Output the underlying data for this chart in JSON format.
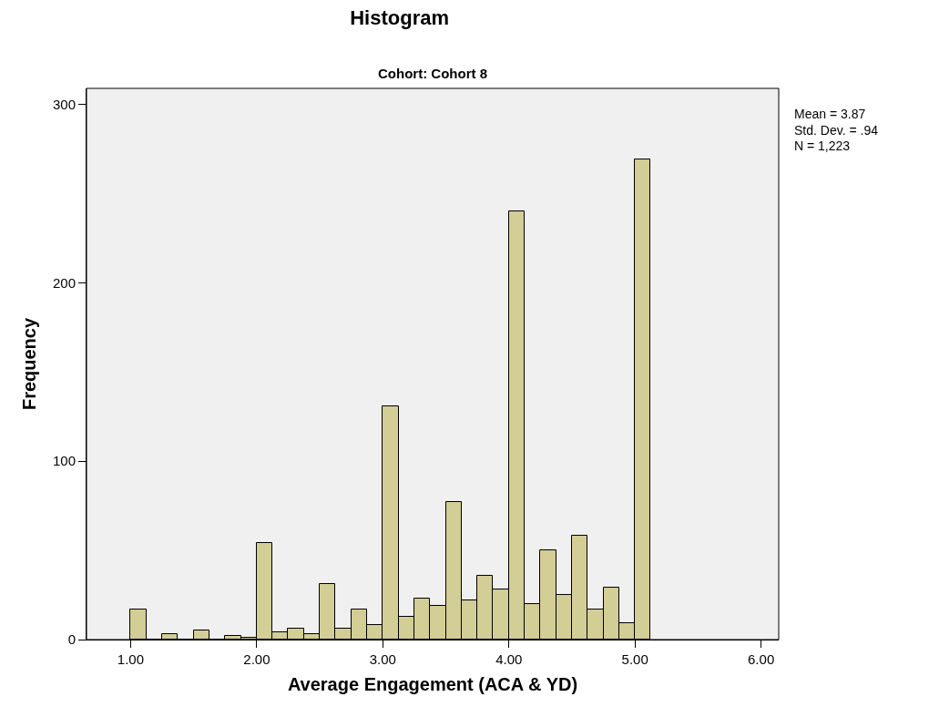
{
  "chart_data": {
    "type": "histogram",
    "title": "Histogram",
    "subtitle": "Cohort: Cohort 8",
    "xlabel": "Average Engagement (ACA & YD)",
    "ylabel": "Frequency",
    "bins": [
      1.0,
      1.125,
      1.25,
      1.375,
      1.5,
      1.625,
      1.75,
      1.875,
      2.0,
      2.125,
      2.25,
      2.375,
      2.5,
      2.625,
      2.75,
      2.875,
      3.0,
      3.125,
      3.25,
      3.375,
      3.5,
      3.625,
      3.75,
      3.875,
      4.0,
      4.125,
      4.25,
      4.375,
      4.5,
      4.625,
      4.75,
      4.875,
      5.0,
      5.125
    ],
    "values": [
      17,
      0,
      3,
      0,
      5,
      0,
      2,
      1,
      54,
      4,
      6,
      3,
      31,
      6,
      17,
      8,
      131,
      13,
      23,
      19,
      77,
      22,
      36,
      28,
      240,
      20,
      50,
      25,
      58,
      17,
      29,
      9,
      269
    ],
    "color": "#d3cd96",
    "xlim": [
      0.65,
      6.14
    ],
    "xticks": [
      {
        "value": 1,
        "label": "1.00"
      },
      {
        "value": 2,
        "label": "2.00"
      },
      {
        "value": 3,
        "label": "3.00"
      },
      {
        "value": 4,
        "label": "4.00"
      },
      {
        "value": 5,
        "label": "5.00"
      },
      {
        "value": 6,
        "label": "6.00"
      }
    ],
    "ylim": [
      0,
      309
    ],
    "yticks": [
      0,
      100,
      200,
      300
    ],
    "annotations": [
      "Mean = 3.87",
      "Std. Dev. = .94",
      "N = 1,223"
    ]
  }
}
